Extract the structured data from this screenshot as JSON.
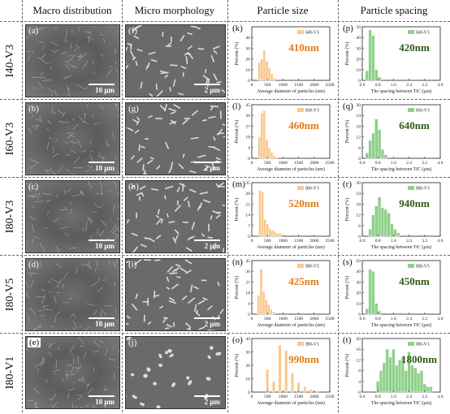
{
  "headers": {
    "macro": "Macro distribution",
    "micro": "Micro morphology",
    "size": "Particle size",
    "spacing": "Particle spacing"
  },
  "rows": [
    {
      "name": "I40-V3",
      "macro_label": "(a)",
      "micro_label": "(f)",
      "size_label": "(k)",
      "spacing_label": "(p)",
      "macro_scale": "10 μm",
      "micro_scale": "2 μm",
      "size_value": "410nm",
      "spacing_value": "420nm"
    },
    {
      "name": "I60-V3",
      "macro_label": "(b)",
      "micro_label": "(g)",
      "size_label": "(l)",
      "spacing_label": "(q)",
      "macro_scale": "10 μm",
      "micro_scale": "2 μm",
      "size_value": "460nm",
      "spacing_value": "640nm"
    },
    {
      "name": "I80-V3",
      "macro_label": "(c)",
      "micro_label": "(h)",
      "size_label": "(m)",
      "spacing_label": "(r)",
      "macro_scale": "10 μm",
      "micro_scale": "2 μm",
      "size_value": "520nm",
      "spacing_value": "940nm"
    },
    {
      "name": "I80-V5",
      "macro_label": "(d)",
      "micro_label": "(i)",
      "size_label": "(n)",
      "spacing_label": "(s)",
      "macro_scale": "10 μm",
      "micro_scale": "2 μm",
      "size_value": "425nm",
      "spacing_value": "450nm"
    },
    {
      "name": "I80-V1",
      "macro_label": "(e)",
      "micro_label": "(j)",
      "size_label": "(o)",
      "spacing_label": "(t)",
      "macro_scale": "10 μm",
      "micro_scale": "2 μm",
      "size_value": "990nm",
      "spacing_value": "1800nm"
    }
  ],
  "colors": {
    "size_bar": "#f9c98f",
    "size_value": "#e07b1a",
    "spacing_bar": "#8fd08a",
    "spacing_value": "#2f5a1a"
  },
  "chart_data": [
    {
      "type": "bar",
      "panel": "(k)",
      "legend": "I40-V3",
      "xlabel": "Average diameter of particles (nm)",
      "ylabel": "Percent (%)",
      "xlim": [
        0,
        2500
      ],
      "ylim": [
        0,
        50
      ],
      "xticks": [
        0,
        500,
        1000,
        1500,
        2000,
        2500
      ],
      "yticks": [
        0,
        10,
        20,
        30,
        40
      ],
      "bin_width": 80,
      "x": [
        240,
        320,
        400,
        480,
        560,
        640,
        720
      ],
      "values": [
        17,
        20,
        28,
        18,
        12,
        6,
        2
      ]
    },
    {
      "type": "bar",
      "panel": "(l)",
      "legend": "I60-V3",
      "xlabel": "Average diameter of particles (nm)",
      "ylabel": "Percent (%)",
      "xlim": [
        0,
        2500
      ],
      "ylim": [
        0,
        45
      ],
      "xticks": [
        0,
        500,
        1000,
        1500,
        2000,
        2500
      ],
      "yticks": [
        0,
        9,
        18,
        27,
        36,
        45
      ],
      "bin_width": 80,
      "x": [
        240,
        320,
        400,
        480,
        560,
        640,
        720,
        800
      ],
      "values": [
        18,
        38,
        40,
        16,
        9,
        5,
        2,
        1
      ]
    },
    {
      "type": "bar",
      "panel": "(m)",
      "legend": "I80-V3",
      "xlabel": "Average diameter of particles (nm)",
      "ylabel": "Percent (%)",
      "xlim": [
        0,
        2500
      ],
      "ylim": [
        0,
        35
      ],
      "xticks": [
        0,
        500,
        1000,
        1500,
        2000,
        2500
      ],
      "yticks": [
        0,
        7,
        14,
        21,
        28,
        35
      ],
      "bin_width": 80,
      "x": [
        260,
        340,
        420,
        500,
        580,
        660,
        740,
        820,
        900,
        980
      ],
      "values": [
        30,
        29,
        11,
        8,
        5,
        4,
        3,
        2,
        2,
        1
      ]
    },
    {
      "type": "bar",
      "panel": "(n)",
      "legend": "I80-V5",
      "xlabel": "Average diameter of particles (nm)",
      "ylabel": "Percent (%)",
      "xlim": [
        0,
        2500
      ],
      "ylim": [
        0,
        45
      ],
      "xticks": [
        0,
        500,
        1000,
        1500,
        2000,
        2500
      ],
      "yticks": [
        0,
        9,
        18,
        27,
        36,
        45
      ],
      "bin_width": 80,
      "x": [
        220,
        300,
        380,
        460,
        540,
        620,
        700
      ],
      "values": [
        16,
        38,
        19,
        12,
        8,
        4,
        2
      ]
    },
    {
      "type": "bar",
      "panel": "(o)",
      "legend": "I80-V1",
      "xlabel": "Average diameter of particles (nm)",
      "ylabel": "Percent (%)",
      "xlim": [
        0,
        2500
      ],
      "ylim": [
        0,
        40
      ],
      "xticks": [
        0,
        500,
        1000,
        1500,
        2000,
        2500
      ],
      "yticks": [
        0,
        10,
        20,
        30,
        40
      ],
      "bin_width": 90,
      "x": [
        500,
        700,
        900,
        1100,
        1300,
        1500,
        1700,
        1900,
        2100
      ],
      "values": [
        17,
        8,
        35,
        31,
        14,
        7,
        4,
        2,
        1
      ]
    },
    {
      "type": "bar",
      "panel": "(p)",
      "legend": "I40-V3",
      "xlabel": "The spacing between TiC (μm)",
      "ylabel": "Percent (%)",
      "xlim": [
        0,
        4.0
      ],
      "ylim": [
        0,
        50
      ],
      "xticks": [
        0.0,
        0.8,
        1.6,
        2.4,
        3.2,
        4.0
      ],
      "yticks": [
        0,
        10,
        20,
        30,
        40,
        50
      ],
      "bin_width": 0.16,
      "x": [
        0.24,
        0.4,
        0.56,
        0.72,
        0.88
      ],
      "values": [
        9,
        47,
        42,
        10,
        3
      ]
    },
    {
      "type": "bar",
      "panel": "(q)",
      "legend": "I60-V3",
      "xlabel": "The spacing between TiC (μm)",
      "ylabel": "Percent (%)",
      "xlim": [
        0,
        4.0
      ],
      "ylim": [
        0,
        30
      ],
      "xticks": [
        0.0,
        0.8,
        1.6,
        2.4,
        3.2,
        4.0
      ],
      "yticks": [
        0,
        6,
        12,
        18,
        24,
        30
      ],
      "bin_width": 0.16,
      "x": [
        0.24,
        0.4,
        0.56,
        0.72,
        0.88,
        1.04,
        1.2
      ],
      "values": [
        3,
        10,
        14,
        22,
        16,
        5,
        2
      ]
    },
    {
      "type": "bar",
      "panel": "(r)",
      "legend": "I80-V3",
      "xlabel": "The spacing between TiC (μm)",
      "ylabel": "Percent (%)",
      "xlim": [
        0,
        4.0
      ],
      "ylim": [
        0,
        30
      ],
      "xticks": [
        0.0,
        0.8,
        1.6,
        2.4,
        3.2,
        4.0
      ],
      "yticks": [
        0,
        6,
        12,
        18,
        24,
        30
      ],
      "bin_width": 0.16,
      "x": [
        0.4,
        0.56,
        0.72,
        0.88,
        1.04,
        1.2,
        1.36,
        1.52,
        1.68,
        1.84
      ],
      "values": [
        4,
        12,
        17,
        22,
        16,
        15,
        13,
        7,
        4,
        2
      ]
    },
    {
      "type": "bar",
      "panel": "(s)",
      "legend": "I80-V5",
      "xlabel": "The spacing between TiC (μm)",
      "ylabel": "Percent (%)",
      "xlim": [
        0,
        4.0
      ],
      "ylim": [
        0,
        50
      ],
      "xticks": [
        0.0,
        0.8,
        1.6,
        2.4,
        3.2,
        4.0
      ],
      "yticks": [
        0,
        10,
        20,
        30,
        40,
        50
      ],
      "bin_width": 0.16,
      "x": [
        0.24,
        0.4,
        0.56,
        0.72,
        0.88
      ],
      "values": [
        5,
        42,
        40,
        10,
        3
      ]
    },
    {
      "type": "bar",
      "panel": "(t)",
      "legend": "I80-V1",
      "xlabel": "The spacing between TiC (μm)",
      "ylabel": "Percent (%)",
      "xlim": [
        0,
        4.0
      ],
      "ylim": [
        0,
        20
      ],
      "xticks": [
        0.0,
        0.8,
        1.6,
        2.4,
        3.2,
        4.0
      ],
      "yticks": [
        0,
        4,
        8,
        12,
        16,
        20
      ],
      "bin_width": 0.16,
      "x": [
        0.8,
        0.96,
        1.12,
        1.28,
        1.44,
        1.6,
        1.76,
        1.92,
        2.08,
        2.24,
        2.4,
        2.56,
        2.72,
        2.88,
        3.04,
        3.2,
        3.36,
        3.52
      ],
      "values": [
        4,
        8,
        11,
        16,
        13,
        16,
        10,
        12,
        13,
        8,
        15,
        10,
        9,
        7,
        8,
        3,
        2,
        2
      ]
    }
  ]
}
